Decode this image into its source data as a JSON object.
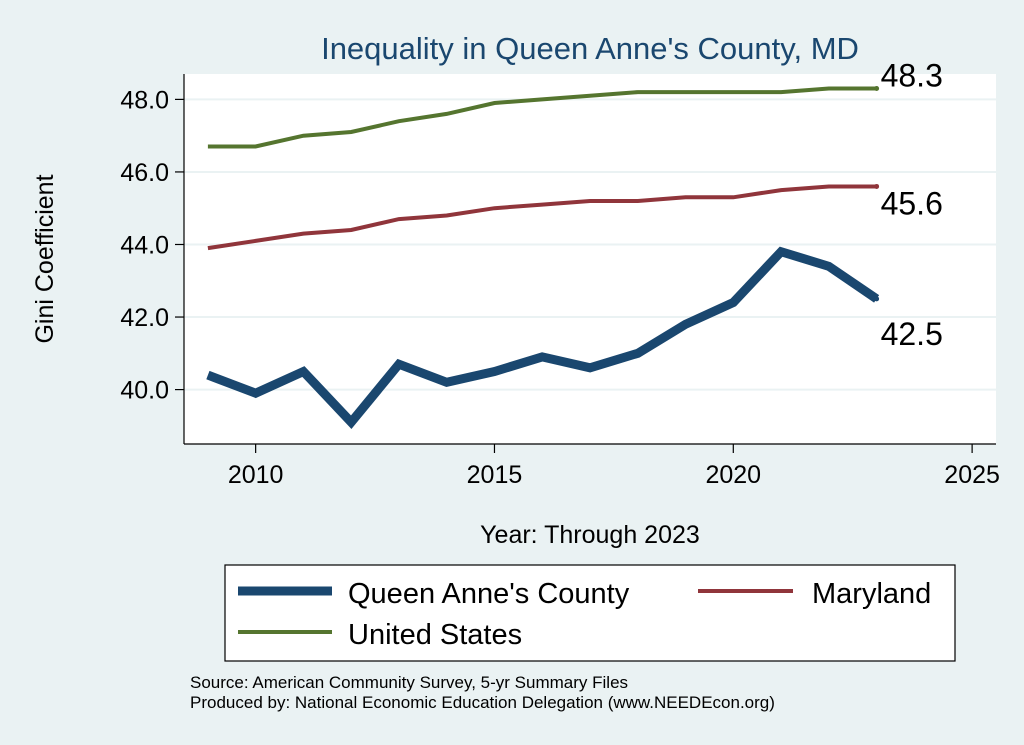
{
  "chart_data": {
    "type": "line",
    "title": "Inequality in Queen Anne's County, MD",
    "xlabel": "Year: Through 2023",
    "ylabel": "Gini Coefficient",
    "xlim": [
      2008.5,
      2025.5
    ],
    "ylim": [
      38.5,
      48.7
    ],
    "xticks": [
      2010,
      2015,
      2020,
      2025
    ],
    "yticks": [
      40.0,
      42.0,
      44.0,
      46.0,
      48.0
    ],
    "x": [
      2009,
      2010,
      2011,
      2012,
      2013,
      2014,
      2015,
      2016,
      2017,
      2018,
      2019,
      2020,
      2021,
      2022,
      2023
    ],
    "series": [
      {
        "name": "Queen Anne's County",
        "color": "#1a476f",
        "values": [
          40.4,
          39.9,
          40.5,
          39.1,
          40.7,
          40.2,
          40.5,
          40.9,
          40.6,
          41.0,
          41.8,
          42.4,
          43.8,
          43.4,
          42.5
        ],
        "end_label": "42.5"
      },
      {
        "name": "Maryland",
        "color": "#90353b",
        "values": [
          43.9,
          44.1,
          44.3,
          44.4,
          44.7,
          44.8,
          45.0,
          45.1,
          45.2,
          45.2,
          45.3,
          45.3,
          45.5,
          45.6,
          45.6
        ],
        "end_label": "45.6"
      },
      {
        "name": "United States",
        "color": "#55752f",
        "values": [
          46.7,
          46.7,
          47.0,
          47.1,
          47.4,
          47.6,
          47.9,
          48.0,
          48.1,
          48.2,
          48.2,
          48.2,
          48.2,
          48.3,
          48.3
        ],
        "end_label": "48.3"
      }
    ],
    "grid": true,
    "legend_position": "bottom"
  },
  "notes": {
    "source": "Source: American Community Survey, 5-yr Summary Files",
    "produced": "Produced by: National Economic Education Delegation (www.NEEDEcon.org)"
  }
}
